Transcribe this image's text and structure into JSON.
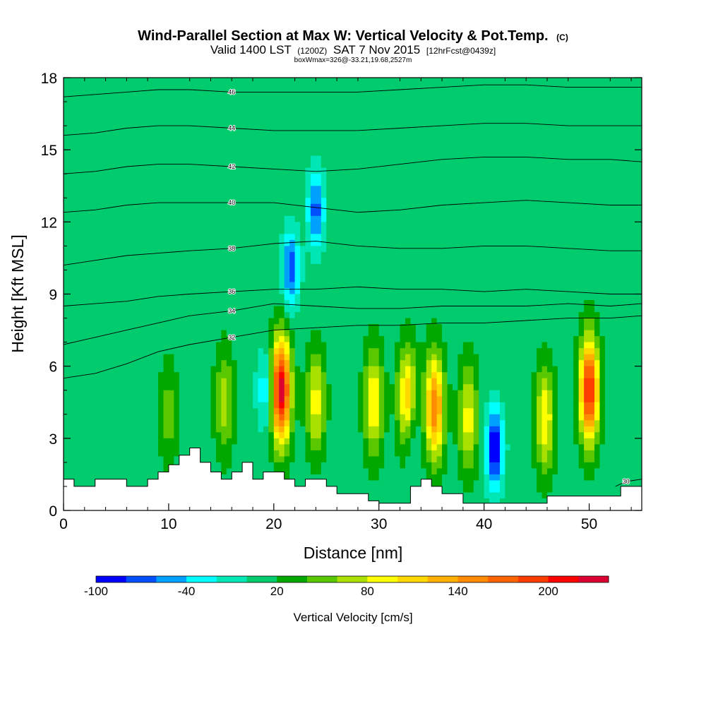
{
  "header": {
    "title_main": "Wind-Parallel Section at Max W: Vertical Velocity & Pot.Temp.",
    "title_copyright": "(C)",
    "valid_main": "Valid 1400 LST",
    "valid_utc": "(1200Z)",
    "valid_date": "SAT 7 Nov 2015",
    "valid_fcst": "[12hrFcst@0439z]",
    "box_info": "boxWmax=326@-33.21,19.68,2527m"
  },
  "chart_data": {
    "type": "heatmap",
    "title": "Wind-Parallel Section at Max W: Vertical Velocity & Pot.Temp.",
    "xlabel": "Distance [nm]",
    "ylabel": "Height [Kft MSL]",
    "xlim": [
      0,
      55
    ],
    "ylim": [
      0,
      18
    ],
    "xticks": [
      0,
      10,
      20,
      30,
      40,
      50
    ],
    "yticks": [
      0,
      3,
      6,
      9,
      12,
      15,
      18
    ],
    "grid": false,
    "colorbar": {
      "label": "Vertical Velocity [cm/s]",
      "placement": "bottom",
      "tick_labels": [
        "-100",
        "-40",
        "20",
        "80",
        "140",
        "200"
      ],
      "tick_values": [
        -100,
        -40,
        20,
        80,
        140,
        200
      ],
      "bins": [
        -100,
        -80,
        -60,
        -40,
        -20,
        0,
        20,
        40,
        60,
        80,
        100,
        120,
        140,
        160,
        180,
        200,
        220,
        240
      ],
      "colors": [
        "#0000ff",
        "#0050ff",
        "#00a0ff",
        "#00ffff",
        "#00e6b4",
        "#00cc6e",
        "#00a800",
        "#5ac800",
        "#aae000",
        "#ffff00",
        "#ffd800",
        "#ffb000",
        "#ff8c00",
        "#ff6400",
        "#ff3c00",
        "#ff0000",
        "#dc0032"
      ]
    },
    "background_w": 10,
    "updrafts": [
      {
        "x": 20.7,
        "z_center": 5.0,
        "peak": 230
      },
      {
        "x": 24.0,
        "z_center": 4.5,
        "peak": 90
      },
      {
        "x": 29.5,
        "z_center": 4.5,
        "peak": 100
      },
      {
        "x": 32.7,
        "z_center": 4.5,
        "peak": 130
      },
      {
        "x": 35.3,
        "z_center": 4.3,
        "peak": 155
      },
      {
        "x": 38.5,
        "z_center": 3.8,
        "peak": 90
      },
      {
        "x": 45.8,
        "z_center": 3.8,
        "peak": 100
      },
      {
        "x": 50.0,
        "z_center": 5.0,
        "peak": 200
      },
      {
        "x": 15.3,
        "z_center": 4.5,
        "peak": 70
      },
      {
        "x": 10.0,
        "z_center": 4.0,
        "peak": 50
      }
    ],
    "downdrafts": [
      {
        "x": 41.0,
        "z_center": 2.6,
        "peak": -105
      },
      {
        "x": 24.0,
        "z_center": 12.5,
        "peak": -70
      },
      {
        "x": 21.6,
        "z_center": 10.0,
        "peak": -75
      },
      {
        "x": 19.2,
        "z_center": 5.0,
        "peak": -40
      },
      {
        "x": 33.0,
        "z_center": 3.2,
        "peak": -40
      }
    ],
    "terrain_kft": [
      [
        0,
        1.3
      ],
      [
        1,
        1.3
      ],
      [
        1,
        1.0
      ],
      [
        3,
        1.0
      ],
      [
        3,
        1.3
      ],
      [
        6,
        1.3
      ],
      [
        6,
        1.0
      ],
      [
        8,
        1.0
      ],
      [
        8,
        1.3
      ],
      [
        9,
        1.3
      ],
      [
        9,
        1.6
      ],
      [
        10,
        1.6
      ],
      [
        10,
        1.9
      ],
      [
        11,
        1.9
      ],
      [
        11,
        2.3
      ],
      [
        12,
        2.3
      ],
      [
        12,
        2.6
      ],
      [
        13,
        2.6
      ],
      [
        13,
        2.0
      ],
      [
        14,
        2.0
      ],
      [
        14,
        1.6
      ],
      [
        15,
        1.6
      ],
      [
        15,
        1.3
      ],
      [
        16,
        1.3
      ],
      [
        16,
        1.6
      ],
      [
        17,
        1.6
      ],
      [
        17,
        2.0
      ],
      [
        18,
        2.0
      ],
      [
        18,
        1.3
      ],
      [
        19,
        1.3
      ],
      [
        19,
        1.6
      ],
      [
        21,
        1.6
      ],
      [
        21,
        1.3
      ],
      [
        22,
        1.3
      ],
      [
        22,
        1.0
      ],
      [
        23,
        1.0
      ],
      [
        23,
        1.3
      ],
      [
        25,
        1.3
      ],
      [
        25,
        1.0
      ],
      [
        26,
        1.0
      ],
      [
        26,
        0.7
      ],
      [
        29,
        0.7
      ],
      [
        29,
        0.4
      ],
      [
        30,
        0.4
      ],
      [
        30,
        0.3
      ],
      [
        33,
        0.3
      ],
      [
        33,
        1.0
      ],
      [
        34,
        1.0
      ],
      [
        34,
        1.3
      ],
      [
        35,
        1.3
      ],
      [
        35,
        1.0
      ],
      [
        36,
        1.0
      ],
      [
        36,
        0.7
      ],
      [
        38,
        0.7
      ],
      [
        38,
        0.3
      ],
      [
        46,
        0.3
      ],
      [
        46,
        0.6
      ],
      [
        53,
        0.6
      ],
      [
        53,
        1.0
      ],
      [
        55,
        1.0
      ]
    ],
    "contours": [
      {
        "label": "30",
        "points": [
          [
            55,
            1.3
          ],
          [
            53.5,
            1.2
          ],
          [
            52.5,
            1.0
          ]
        ]
      },
      {
        "label": "32",
        "points": [
          [
            0,
            5.5
          ],
          [
            3,
            5.7
          ],
          [
            6,
            6.1
          ],
          [
            9,
            6.6
          ],
          [
            12,
            6.9
          ],
          [
            16,
            7.2
          ],
          [
            20,
            7.5
          ],
          [
            24,
            7.6
          ],
          [
            28,
            7.7
          ],
          [
            32,
            7.7
          ],
          [
            36,
            7.8
          ],
          [
            40,
            7.8
          ],
          [
            44,
            7.9
          ],
          [
            48,
            8.0
          ],
          [
            52,
            8.0
          ],
          [
            55,
            8.1
          ]
        ]
      },
      {
        "label": "34",
        "points": [
          [
            0,
            6.9
          ],
          [
            3,
            7.2
          ],
          [
            6,
            7.5
          ],
          [
            9,
            7.8
          ],
          [
            12,
            8.1
          ],
          [
            16,
            8.3
          ],
          [
            20,
            8.6
          ],
          [
            24,
            8.5
          ],
          [
            28,
            8.4
          ],
          [
            32,
            8.4
          ],
          [
            36,
            8.5
          ],
          [
            40,
            8.5
          ],
          [
            44,
            8.5
          ],
          [
            48,
            8.6
          ],
          [
            52,
            8.5
          ],
          [
            55,
            8.6
          ]
        ]
      },
      {
        "label": "36",
        "points": [
          [
            0,
            8.5
          ],
          [
            3,
            8.6
          ],
          [
            6,
            8.7
          ],
          [
            9,
            8.9
          ],
          [
            12,
            9.0
          ],
          [
            16,
            9.1
          ],
          [
            20,
            9.2
          ],
          [
            24,
            9.2
          ],
          [
            28,
            9.3
          ],
          [
            32,
            9.2
          ],
          [
            36,
            9.2
          ],
          [
            40,
            9.1
          ],
          [
            44,
            9.2
          ],
          [
            48,
            9.1
          ],
          [
            52,
            9.0
          ],
          [
            55,
            9.0
          ]
        ]
      },
      {
        "label": "38",
        "points": [
          [
            0,
            10.2
          ],
          [
            3,
            10.4
          ],
          [
            6,
            10.6
          ],
          [
            9,
            10.7
          ],
          [
            12,
            10.8
          ],
          [
            16,
            10.9
          ],
          [
            20,
            11.1
          ],
          [
            24,
            11.2
          ],
          [
            28,
            11.0
          ],
          [
            32,
            10.9
          ],
          [
            36,
            10.9
          ],
          [
            40,
            11.0
          ],
          [
            44,
            11.0
          ],
          [
            48,
            10.9
          ],
          [
            52,
            10.8
          ],
          [
            55,
            10.8
          ]
        ]
      },
      {
        "label": "40",
        "points": [
          [
            0,
            12.4
          ],
          [
            3,
            12.5
          ],
          [
            6,
            12.7
          ],
          [
            9,
            12.8
          ],
          [
            12,
            12.8
          ],
          [
            16,
            12.8
          ],
          [
            20,
            12.8
          ],
          [
            24,
            12.6
          ],
          [
            28,
            12.4
          ],
          [
            32,
            12.5
          ],
          [
            36,
            12.7
          ],
          [
            40,
            12.8
          ],
          [
            44,
            12.9
          ],
          [
            48,
            12.8
          ],
          [
            52,
            12.7
          ],
          [
            55,
            12.7
          ]
        ]
      },
      {
        "label": "42",
        "points": [
          [
            0,
            14.0
          ],
          [
            3,
            14.1
          ],
          [
            6,
            14.3
          ],
          [
            9,
            14.4
          ],
          [
            12,
            14.4
          ],
          [
            16,
            14.3
          ],
          [
            20,
            14.2
          ],
          [
            24,
            14.1
          ],
          [
            28,
            14.2
          ],
          [
            32,
            14.4
          ],
          [
            36,
            14.6
          ],
          [
            40,
            14.7
          ],
          [
            44,
            14.7
          ],
          [
            48,
            14.6
          ],
          [
            52,
            14.6
          ],
          [
            55,
            14.5
          ]
        ]
      },
      {
        "label": "44",
        "points": [
          [
            0,
            15.6
          ],
          [
            3,
            15.7
          ],
          [
            6,
            15.9
          ],
          [
            9,
            16.0
          ],
          [
            12,
            16.0
          ],
          [
            16,
            15.9
          ],
          [
            20,
            15.8
          ],
          [
            24,
            15.8
          ],
          [
            28,
            15.8
          ],
          [
            32,
            15.9
          ],
          [
            36,
            16.0
          ],
          [
            40,
            16.1
          ],
          [
            44,
            16.1
          ],
          [
            48,
            16.0
          ],
          [
            52,
            16.0
          ],
          [
            55,
            16.0
          ]
        ]
      },
      {
        "label": "46",
        "points": [
          [
            0,
            17.2
          ],
          [
            3,
            17.3
          ],
          [
            6,
            17.4
          ],
          [
            9,
            17.5
          ],
          [
            12,
            17.5
          ],
          [
            16,
            17.4
          ],
          [
            20,
            17.4
          ],
          [
            24,
            17.4
          ],
          [
            28,
            17.4
          ],
          [
            32,
            17.5
          ],
          [
            36,
            17.6
          ],
          [
            40,
            17.7
          ],
          [
            44,
            17.7
          ],
          [
            48,
            17.6
          ],
          [
            52,
            17.6
          ],
          [
            55,
            17.6
          ]
        ]
      }
    ]
  }
}
